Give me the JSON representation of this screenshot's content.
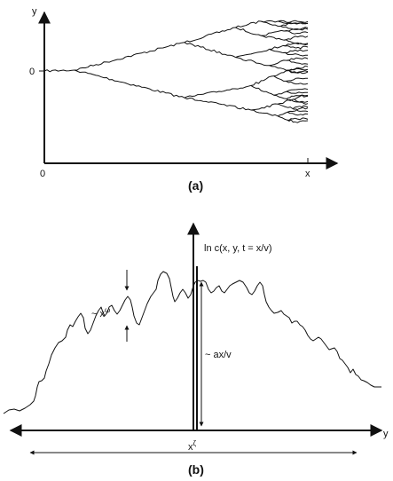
{
  "panel_a": {
    "y_label": "y",
    "x_label": "x",
    "origin_y_label": "0",
    "origin_x_label": "0",
    "caption": "(a)"
  },
  "panel_b": {
    "vertical_axis_label": "ln c(x, y, t = x/v)",
    "horizontal_axis_label": "y",
    "height_label": "~ ax/v",
    "fluctuation_label": "~ x",
    "fluctuation_exponent": "ω",
    "width_label": "x",
    "width_exponent": "ζ",
    "caption": "(b)"
  }
}
